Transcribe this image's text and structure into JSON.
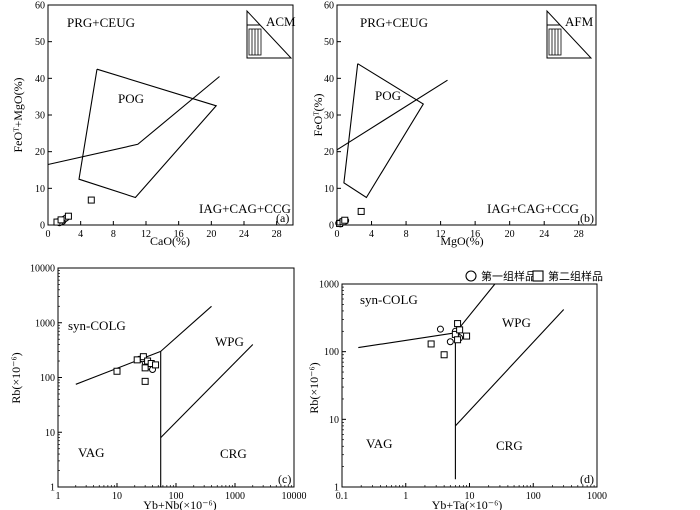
{
  "chart_data": [
    {
      "id": "a",
      "type": "scatter",
      "panel_label": "(a)",
      "xlabel": "CaO(%)",
      "ylabel": "FeOᵀ+MgO(%)",
      "xlim": [
        0,
        30
      ],
      "ylim": [
        0,
        60
      ],
      "xticks": [
        0,
        4,
        8,
        12,
        16,
        20,
        24,
        28
      ],
      "yticks": [
        0,
        10,
        20,
        30,
        40,
        50,
        60
      ],
      "fields": [
        "PRG+CEUG",
        "POG",
        "IAG+CAG+CCG"
      ],
      "inset_label": "ACM",
      "lines": [
        {
          "name": "POG polygon",
          "points": [
            [
              6,
              42.5
            ],
            [
              20.6,
              32.5
            ],
            [
              10.7,
              7.5
            ],
            [
              3.8,
              12.5
            ],
            [
              6,
              42.5
            ]
          ]
        },
        {
          "name": "boundary",
          "points": [
            [
              0,
              16.5
            ],
            [
              11,
              22
            ],
            [
              21,
              40.5
            ]
          ]
        }
      ],
      "series": [
        {
          "marker": "circle",
          "points": [
            [
              1.2,
              0.9
            ],
            [
              1.5,
              1.2
            ],
            [
              1.8,
              1.0
            ],
            [
              2.0,
              1.6
            ],
            [
              1.4,
              0.6
            ],
            [
              2.2,
              1.9
            ]
          ]
        },
        {
          "marker": "square",
          "points": [
            [
              1.1,
              0.8
            ],
            [
              1.6,
              1.4
            ],
            [
              2.5,
              2.4
            ],
            [
              5.3,
              6.8
            ]
          ]
        }
      ]
    },
    {
      "id": "b",
      "type": "scatter",
      "panel_label": "(b)",
      "xlabel": "MgO(%)",
      "ylabel": "FeOᵀ(%)",
      "xlim": [
        0,
        30
      ],
      "ylim": [
        0,
        60
      ],
      "xticks": [
        0,
        4,
        8,
        12,
        16,
        20,
        24,
        28
      ],
      "yticks": [
        0,
        10,
        20,
        30,
        40,
        50,
        60
      ],
      "fields": [
        "PRG+CEUG",
        "POG",
        "IAG+CAG+CCG"
      ],
      "inset_label": "AFM",
      "lines": [
        {
          "name": "POG polygon",
          "points": [
            [
              2.4,
              44
            ],
            [
              10,
              33
            ],
            [
              3.4,
              7.5
            ],
            [
              0.8,
              11.5
            ],
            [
              2.4,
              44
            ]
          ]
        },
        {
          "name": "boundary",
          "points": [
            [
              0,
              20.5
            ],
            [
              12.8,
              39.5
            ]
          ]
        }
      ],
      "series": [
        {
          "marker": "circle",
          "points": [
            [
              0.2,
              0.5
            ],
            [
              0.5,
              0.8
            ],
            [
              0.8,
              1.0
            ],
            [
              0.4,
              0.3
            ],
            [
              1.0,
              1.2
            ]
          ]
        },
        {
          "marker": "square",
          "points": [
            [
              0.3,
              0.4
            ],
            [
              0.7,
              0.9
            ],
            [
              0.9,
              1.3
            ],
            [
              2.8,
              3.7
            ]
          ]
        }
      ]
    },
    {
      "id": "c",
      "type": "scatter",
      "scale": "log",
      "panel_label": "(c)",
      "xlabel": "Yb+Nb(×10⁻⁶)",
      "ylabel": "Rb(×10⁻⁶)",
      "xlim": [
        1,
        10000
      ],
      "ylim": [
        1,
        10000
      ],
      "xticks": [
        1,
        10,
        100,
        1000,
        10000
      ],
      "yticks": [
        1,
        10,
        100,
        1000,
        10000
      ],
      "fields": [
        "syn-COLG",
        "WPG",
        "VAG",
        "CRG"
      ],
      "lines": [
        {
          "name": "VAG/syn-COLG",
          "points": [
            [
              2,
              75
            ],
            [
              55,
              300
            ]
          ]
        },
        {
          "name": "WPG upper",
          "points": [
            [
              55,
              300
            ],
            [
              400,
              2000
            ]
          ]
        },
        {
          "name": "VAG/ORG vertical",
          "points": [
            [
              55,
              1
            ],
            [
              55,
              300
            ]
          ]
        },
        {
          "name": "WPG/CRG",
          "points": [
            [
              55,
              8
            ],
            [
              2000,
              400
            ]
          ]
        }
      ],
      "series": [
        {
          "marker": "circle",
          "points": [
            [
              24,
              215
            ],
            [
              30,
              190
            ],
            [
              35,
              160
            ],
            [
              40,
              140
            ],
            [
              27,
              220
            ]
          ]
        },
        {
          "marker": "square",
          "points": [
            [
              10,
              130
            ],
            [
              22,
              210
            ],
            [
              28,
              240
            ],
            [
              30,
              150
            ],
            [
              33,
              200
            ],
            [
              38,
              180
            ],
            [
              45,
              170
            ],
            [
              30,
              85
            ]
          ]
        }
      ]
    },
    {
      "id": "d",
      "type": "scatter",
      "scale": "log",
      "panel_label": "(d)",
      "xlabel": "Yb+Ta(×10⁻⁶)",
      "ylabel": "Rb(×10⁻⁶)",
      "xlim": [
        0.1,
        1000
      ],
      "ylim": [
        1,
        1000
      ],
      "xticks": [
        0.1,
        1,
        10,
        100,
        1000
      ],
      "yticks": [
        1,
        10,
        100,
        1000
      ],
      "fields": [
        "syn-COLG",
        "WPG",
        "VAG",
        "CRG"
      ],
      "legend": {
        "circle": "第一组样品",
        "square": "第二组样品"
      },
      "lines": [
        {
          "name": "VAG/syn-COLG",
          "points": [
            [
              0.18,
              115
            ],
            [
              6,
              190
            ]
          ]
        },
        {
          "name": "WPG upper",
          "points": [
            [
              6,
              190
            ],
            [
              25,
              1000
            ]
          ]
        },
        {
          "name": "VAG/ORG vertical",
          "points": [
            [
              6,
              1.3
            ],
            [
              6,
              190
            ]
          ]
        },
        {
          "name": "WPG/CRG",
          "points": [
            [
              6,
              8
            ],
            [
              300,
              420
            ]
          ]
        }
      ],
      "series": [
        {
          "marker": "circle",
          "points": [
            [
              3.5,
              215
            ],
            [
              5,
              140
            ],
            [
              6,
              200
            ],
            [
              6.5,
              170
            ],
            [
              7,
              160
            ]
          ]
        },
        {
          "marker": "square",
          "points": [
            [
              2.5,
              130
            ],
            [
              4,
              90
            ],
            [
              6,
              180
            ],
            [
              6.5,
              260
            ],
            [
              7,
              210
            ],
            [
              9,
              170
            ],
            [
              6.5,
              150
            ]
          ]
        }
      ]
    }
  ]
}
